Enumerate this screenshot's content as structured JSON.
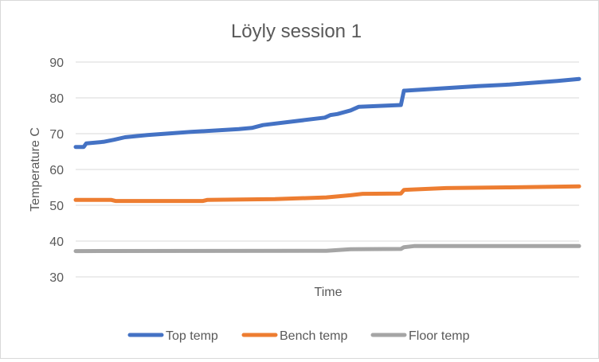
{
  "chart_data": {
    "type": "line",
    "title": "Löyly session 1",
    "xlabel": "Time",
    "ylabel": "Temperature C",
    "ylim": [
      30,
      90
    ],
    "yticks": [
      30,
      40,
      50,
      60,
      70,
      80,
      90
    ],
    "xlim": [
      0,
      100
    ],
    "grid": true,
    "legend_position": "bottom",
    "series": [
      {
        "name": "Top temp",
        "color": "#4472c4",
        "points": [
          [
            0,
            66.3
          ],
          [
            1.6,
            66.3
          ],
          [
            2.1,
            67.3
          ],
          [
            5.5,
            67.7
          ],
          [
            7.6,
            68.3
          ],
          [
            9.8,
            69.0
          ],
          [
            14.2,
            69.6
          ],
          [
            22.9,
            70.5
          ],
          [
            32.4,
            71.3
          ],
          [
            35,
            71.6
          ],
          [
            37.2,
            72.4
          ],
          [
            49.5,
            74.5
          ],
          [
            50.6,
            75.2
          ],
          [
            52,
            75.5
          ],
          [
            54.6,
            76.5
          ],
          [
            56.2,
            77.5
          ],
          [
            64.6,
            78.0
          ],
          [
            65.2,
            82.0
          ],
          [
            73.6,
            82.7
          ],
          [
            79.9,
            83.3
          ],
          [
            86.2,
            83.7
          ],
          [
            95.7,
            84.7
          ],
          [
            100,
            85.3
          ]
        ]
      },
      {
        "name": "Bench temp",
        "color": "#ed7d31",
        "points": [
          [
            0,
            51.5
          ],
          [
            7.1,
            51.5
          ],
          [
            7.9,
            51.2
          ],
          [
            25.3,
            51.2
          ],
          [
            26.1,
            51.5
          ],
          [
            39.6,
            51.7
          ],
          [
            49.8,
            52.2
          ],
          [
            54.6,
            52.8
          ],
          [
            57,
            53.2
          ],
          [
            64.6,
            53.3
          ],
          [
            65.2,
            54.3
          ],
          [
            73.6,
            54.8
          ],
          [
            86.2,
            55.0
          ],
          [
            100,
            55.3
          ]
        ]
      },
      {
        "name": "Floor temp",
        "color": "#a5a5a5",
        "points": [
          [
            0,
            37.2
          ],
          [
            49.8,
            37.3
          ],
          [
            54.6,
            37.7
          ],
          [
            64.6,
            37.8
          ],
          [
            65.2,
            38.3
          ],
          [
            67.2,
            38.6
          ],
          [
            100,
            38.6
          ]
        ]
      }
    ]
  }
}
